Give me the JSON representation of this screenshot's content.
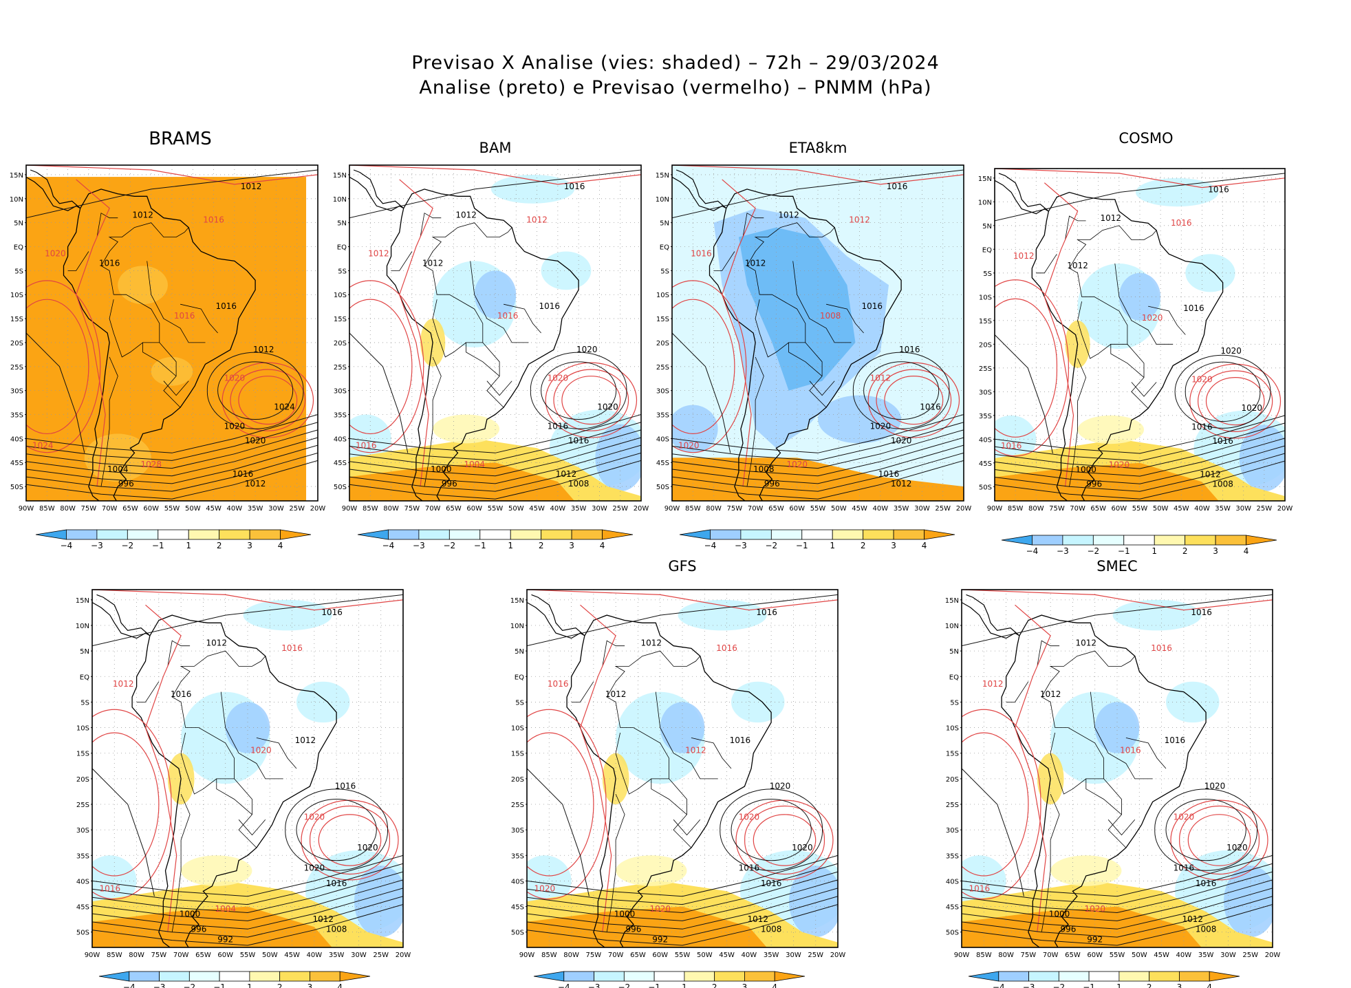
{
  "title": {
    "line1": "Previsao X Analise (vies: shaded) – 72h – 29/03/2024",
    "line2": "Analise (preto) e Previsao (vermelho) – PNMM (hPa)"
  },
  "axes": {
    "lat_labels": [
      "15N",
      "10N",
      "5N",
      "EQ",
      "5S",
      "10S",
      "15S",
      "20S",
      "25S",
      "30S",
      "35S",
      "40S",
      "45S",
      "50S"
    ],
    "lon_labels": [
      "90W",
      "85W",
      "80W",
      "75W",
      "70W",
      "65W",
      "60W",
      "55W",
      "50W",
      "45W",
      "40W",
      "35W",
      "30W",
      "25W",
      "20W"
    ]
  },
  "colorbar": {
    "labels": [
      "−4",
      "−3",
      "−2",
      "−1",
      "1",
      "2",
      "3",
      "4"
    ],
    "colors": [
      "#3ea7ee",
      "#9fcfff",
      "#c6f5ff",
      "#e6ffff",
      "#ffffff",
      "#fff8b0",
      "#fde05c",
      "#fbc13a",
      "#fba414"
    ]
  },
  "panels": [
    {
      "id": "brams",
      "label": "BRAMS",
      "fill": "orange",
      "black_isobars": [
        "1012",
        "1012",
        "1016",
        "1016",
        "1012",
        "1020",
        "1024",
        "1020",
        "1016",
        "1012",
        "1004",
        "996"
      ],
      "red_isobars": [
        "1020",
        "1016",
        "1016",
        "1020",
        "1024",
        "1028"
      ]
    },
    {
      "id": "bam",
      "label": "BAM",
      "fill": "light",
      "black_isobars": [
        "1016",
        "1012",
        "1012",
        "1016",
        "1020",
        "1016",
        "1020",
        "1016",
        "1012",
        "1008",
        "1000",
        "996"
      ],
      "red_isobars": [
        "1012",
        "1012",
        "1016",
        "1020",
        "1016",
        "1004"
      ]
    },
    {
      "id": "eta8km",
      "label": "ETA8km",
      "fill": "blue",
      "black_isobars": [
        "1016",
        "1012",
        "1012",
        "1016",
        "1016",
        "1020",
        "1016",
        "1020",
        "1016",
        "1012",
        "1008",
        "996"
      ],
      "red_isobars": [
        "1016",
        "1012",
        "1008",
        "1012",
        "1020",
        "1020"
      ]
    },
    {
      "id": "cosmo",
      "label": "COSMO",
      "fill": "light",
      "black_isobars": [
        "1016",
        "1012",
        "1012",
        "1016",
        "1020",
        "1016",
        "1020",
        "1016",
        "1012",
        "1008",
        "1000",
        "996"
      ],
      "red_isobars": [
        "1012",
        "1016",
        "1020",
        "1020",
        "1016",
        "1020"
      ]
    },
    {
      "id": "panel5",
      "label": "",
      "fill": "light",
      "black_isobars": [
        "1016",
        "1012",
        "1016",
        "1012",
        "1016",
        "1020",
        "1020",
        "1016",
        "1012",
        "1008",
        "1000",
        "996",
        "992"
      ],
      "red_isobars": [
        "1012",
        "1016",
        "1020",
        "1020",
        "1016",
        "1004"
      ]
    },
    {
      "id": "gfs",
      "label": "GFS",
      "fill": "light",
      "black_isobars": [
        "1016",
        "1012",
        "1012",
        "1016",
        "1020",
        "1016",
        "1020",
        "1016",
        "1012",
        "1008",
        "1000",
        "996",
        "992"
      ],
      "red_isobars": [
        "1016",
        "1016",
        "1012",
        "1020",
        "1020",
        "1020"
      ]
    },
    {
      "id": "smec",
      "label": "SMEC",
      "fill": "light",
      "black_isobars": [
        "1016",
        "1012",
        "1012",
        "1016",
        "1020",
        "1016",
        "1020",
        "1016",
        "1012",
        "1008",
        "1000",
        "996",
        "992"
      ],
      "red_isobars": [
        "1012",
        "1016",
        "1016",
        "1020",
        "1016",
        "1020"
      ]
    }
  ]
}
